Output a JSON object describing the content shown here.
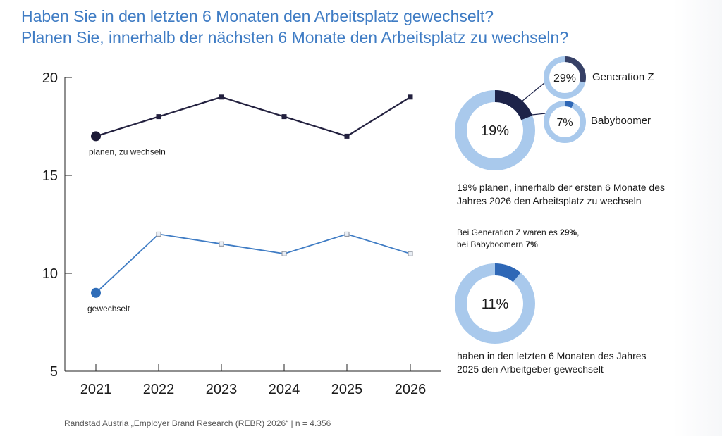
{
  "title": {
    "line1": "Haben Sie in den letzten 6 Monaten den Arbeitsplatz gewechselt?",
    "line2": "Planen Sie, innerhalb der nächsten 6 Monate den Arbeitsplatz zu wechseln?"
  },
  "colors": {
    "title": "#3f7cc4",
    "planen": "#23213f",
    "gewechselt": "#3f7cc4",
    "donut_track": "#a9c9ec",
    "donut_dark": "#1d2349",
    "donut_mid": "#2e67b6",
    "genz_ring": "#364066",
    "boomer_ring": "#2e67b6"
  },
  "chart_data": {
    "type": "line",
    "x": [
      "2021",
      "2022",
      "2023",
      "2024",
      "2025",
      "2026"
    ],
    "ylim": [
      5,
      20
    ],
    "yticks": [
      "5",
      "10",
      "15",
      "20"
    ],
    "series": [
      {
        "name": "planen, zu wechseln",
        "values": [
          17,
          18,
          19,
          18,
          17,
          19
        ]
      },
      {
        "name": "gewechselt",
        "values": [
          9,
          12,
          11.5,
          11,
          12,
          11
        ]
      }
    ]
  },
  "donuts": {
    "main_plan": {
      "value": 19,
      "label": "19%"
    },
    "genz": {
      "value": 29,
      "label": "29%",
      "name": "Generation Z"
    },
    "boomer": {
      "value": 7,
      "label": "7%",
      "name": "Babyboomer"
    },
    "changed": {
      "value": 11,
      "label": "11%"
    }
  },
  "texts": {
    "plan_desc": "19% planen, innerhalb der ersten 6 Monate des Jahres 2026 den Arbeitsplatz zu wechseln",
    "note_a": "Bei Generation Z waren es ",
    "note_b": "29%",
    "note_c": ",",
    "note_d": "bei Babyboomern ",
    "note_e": "7%",
    "changed_desc": "haben in den letzten 6 Monaten des Jahres 2025 den Arbeitgeber gewechselt"
  },
  "source": "Randstad Austria „Employer Brand Research (REBR) 2026“ | n = 4.356"
}
